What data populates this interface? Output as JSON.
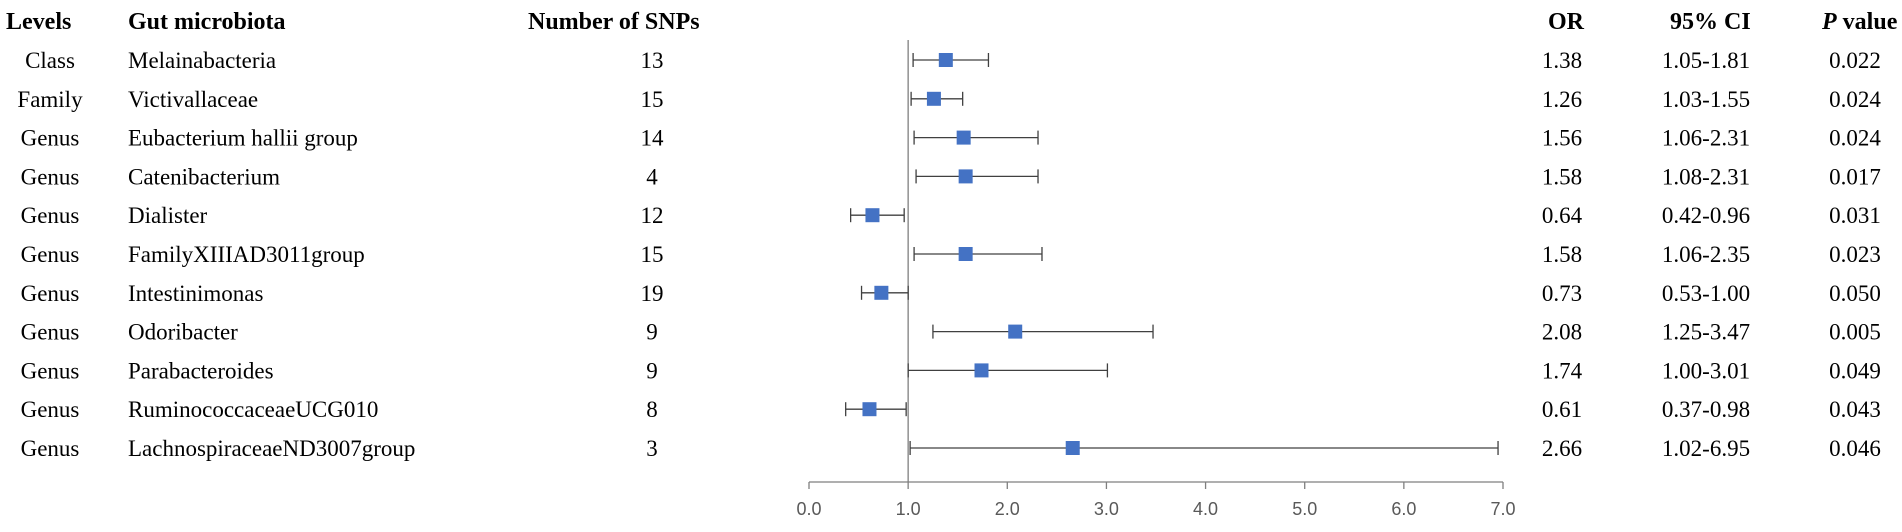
{
  "headers": {
    "levels": "Levels",
    "taxon": "Gut microbiota",
    "snps": "Number of SNPs",
    "or": "OR",
    "ci": "95% CI",
    "p_prefix": "P",
    "p_suffix": " value"
  },
  "chart_data": {
    "type": "forest",
    "title": "",
    "xlabel": "",
    "xlim": [
      0,
      7
    ],
    "xticks": [
      "0.0",
      "1.0",
      "2.0",
      "3.0",
      "4.0",
      "5.0",
      "6.0",
      "7.0"
    ],
    "reference_line": 1.0,
    "marker_color": "#4472C4",
    "rows": [
      {
        "level": "Class",
        "taxon": "Melainabacteria",
        "snps": "13",
        "or": 1.38,
        "lower": 1.05,
        "upper": 1.81,
        "or_text": "1.38",
        "ci_text": "1.05-1.81",
        "p_text": "0.022"
      },
      {
        "level": "Family",
        "taxon": "Victivallaceae",
        "snps": "15",
        "or": 1.26,
        "lower": 1.03,
        "upper": 1.55,
        "or_text": "1.26",
        "ci_text": "1.03-1.55",
        "p_text": "0.024"
      },
      {
        "level": "Genus",
        "taxon": "Eubacterium hallii group",
        "snps": "14",
        "or": 1.56,
        "lower": 1.06,
        "upper": 2.31,
        "or_text": "1.56",
        "ci_text": "1.06-2.31",
        "p_text": "0.024"
      },
      {
        "level": "Genus",
        "taxon": "Catenibacterium",
        "snps": "4",
        "or": 1.58,
        "lower": 1.08,
        "upper": 2.31,
        "or_text": "1.58",
        "ci_text": "1.08-2.31",
        "p_text": "0.017"
      },
      {
        "level": "Genus",
        "taxon": "Dialister",
        "snps": "12",
        "or": 0.64,
        "lower": 0.42,
        "upper": 0.96,
        "or_text": "0.64",
        "ci_text": "0.42-0.96",
        "p_text": "0.031"
      },
      {
        "level": "Genus",
        "taxon": "FamilyXIIIAD3011group",
        "snps": "15",
        "or": 1.58,
        "lower": 1.06,
        "upper": 2.35,
        "or_text": "1.58",
        "ci_text": "1.06-2.35",
        "p_text": "0.023"
      },
      {
        "level": "Genus",
        "taxon": "Intestinimonas",
        "snps": "19",
        "or": 0.73,
        "lower": 0.53,
        "upper": 1.0,
        "or_text": "0.73",
        "ci_text": "0.53-1.00",
        "p_text": "0.050"
      },
      {
        "level": "Genus",
        "taxon": "Odoribacter",
        "snps": "9",
        "or": 2.08,
        "lower": 1.25,
        "upper": 3.47,
        "or_text": "2.08",
        "ci_text": "1.25-3.47",
        "p_text": "0.005"
      },
      {
        "level": "Genus",
        "taxon": "Parabacteroides",
        "snps": "9",
        "or": 1.74,
        "lower": 1.0,
        "upper": 3.01,
        "or_text": "1.74",
        "ci_text": "1.00-3.01",
        "p_text": "0.049"
      },
      {
        "level": "Genus",
        "taxon": "RuminococcaceaeUCG010",
        "snps": "8",
        "or": 0.61,
        "lower": 0.37,
        "upper": 0.98,
        "or_text": "0.61",
        "ci_text": "0.37-0.98",
        "p_text": "0.043"
      },
      {
        "level": "Genus",
        "taxon": "LachnospiraceaeND3007group",
        "snps": "3",
        "or": 2.66,
        "lower": 1.02,
        "upper": 6.95,
        "or_text": "2.66",
        "ci_text": "1.02-6.95",
        "p_text": "0.046"
      }
    ]
  }
}
